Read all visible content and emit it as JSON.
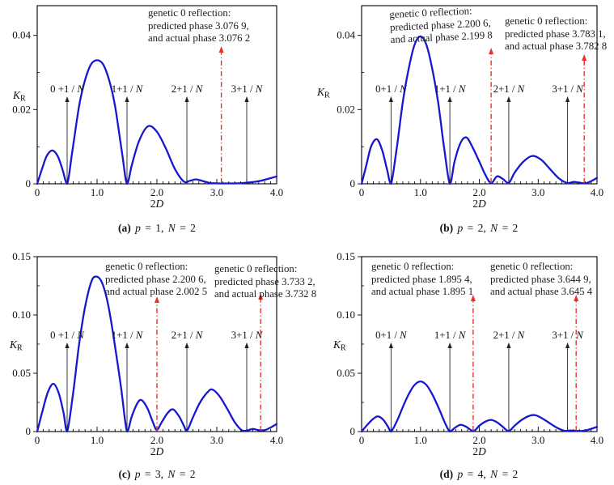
{
  "figure": {
    "background": "#ffffff"
  },
  "colors": {
    "curve_blue": "#1717cf",
    "arrow_red": "#e53127",
    "axis_black": "#000000",
    "text_black": "#1a1a1a"
  },
  "chart_data": [
    {
      "id": "a",
      "type": "line",
      "xlabel": {
        "prefix": "2",
        "italic": "D"
      },
      "ylabel": {
        "main": "K",
        "sub": "R"
      },
      "xlim": [
        0,
        4
      ],
      "ylim": [
        0,
        0.048
      ],
      "xtick_labels": [
        "0",
        "1.0",
        "2.0",
        "3.0",
        "4.0"
      ],
      "yticks": [
        {
          "v": 0,
          "label": "0"
        },
        {
          "v": 0.02,
          "label": "0.02"
        },
        {
          "v": 0.04,
          "label": "0.04"
        }
      ],
      "marker_arrows": [
        {
          "label": "0 +1 / N",
          "x": 0.5
        },
        {
          "label": "1+1 / N",
          "x": 1.5
        },
        {
          "label": "2+1 / N",
          "x": 2.5
        },
        {
          "label": "3+1 / N",
          "x": 3.5
        }
      ],
      "annotations": [
        {
          "lines": [
            "genetic 0  reflection:",
            "predicted phase 3.076 9,",
            "and actual phase 3.076 2"
          ],
          "arrow_x": 3.076
        }
      ],
      "caption": {
        "index": "(a)",
        "p_label": "p",
        "p_value": "= 1,",
        "n_label": "N",
        "n_value": "= 2"
      },
      "curve": [
        [
          0,
          0
        ],
        [
          0.08,
          0.004
        ],
        [
          0.16,
          0.0075
        ],
        [
          0.25,
          0.009
        ],
        [
          0.34,
          0.0075
        ],
        [
          0.42,
          0.004
        ],
        [
          0.5,
          0
        ],
        [
          0.58,
          0.008
        ],
        [
          0.7,
          0.021
        ],
        [
          0.8,
          0.028
        ],
        [
          0.9,
          0.0322
        ],
        [
          1.0,
          0.0333
        ],
        [
          1.1,
          0.0322
        ],
        [
          1.2,
          0.028
        ],
        [
          1.3,
          0.021
        ],
        [
          1.42,
          0.008
        ],
        [
          1.5,
          0
        ],
        [
          1.58,
          0.005
        ],
        [
          1.7,
          0.0115
        ],
        [
          1.85,
          0.0155
        ],
        [
          2.0,
          0.014
        ],
        [
          2.15,
          0.0095
        ],
        [
          2.3,
          0.004
        ],
        [
          2.45,
          0.0006
        ],
        [
          2.55,
          0.0008
        ],
        [
          2.65,
          0.0012
        ],
        [
          2.75,
          0.0008
        ],
        [
          2.9,
          0.0002
        ],
        [
          3.1,
          0.0001
        ],
        [
          3.3,
          0.0001
        ],
        [
          3.5,
          0.0003
        ],
        [
          3.7,
          0.0007
        ],
        [
          3.85,
          0.0013
        ],
        [
          4.0,
          0.002
        ]
      ]
    },
    {
      "id": "b",
      "type": "line",
      "xlabel": {
        "prefix": "2",
        "italic": "D"
      },
      "ylabel": {
        "main": "K",
        "sub": "R"
      },
      "xlim": [
        0,
        4
      ],
      "ylim": [
        0,
        0.048
      ],
      "xtick_labels": [
        "0",
        "1.0",
        "2.0",
        "3.0",
        "4.0"
      ],
      "yticks": [
        {
          "v": 0,
          "label": "0"
        },
        {
          "v": 0.02,
          "label": "0.02"
        },
        {
          "v": 0.04,
          "label": "0.04"
        }
      ],
      "marker_arrows": [
        {
          "label": "0+1 / N",
          "x": 0.5
        },
        {
          "label": "1+1 / N",
          "x": 1.5
        },
        {
          "label": "2+1 / N",
          "x": 2.5
        },
        {
          "label": "3+1 / N",
          "x": 3.5
        }
      ],
      "annotations": [
        {
          "lines": [
            "genetic 0  reflection:",
            "predicted phase 2.200 6,",
            "and actual phase 2.199 8"
          ],
          "arrow_x": 2.2
        },
        {
          "lines": [
            "genetic 0  reflection:",
            "predicted phase 3.783 1,",
            "and actual phase 3.782 8"
          ],
          "arrow_x": 3.783
        }
      ],
      "caption": {
        "index": "(b)",
        "p_label": "p",
        "p_value": "= 2,",
        "n_label": "N",
        "n_value": "= 2"
      },
      "curve": [
        [
          0,
          0
        ],
        [
          0.08,
          0.005
        ],
        [
          0.16,
          0.01
        ],
        [
          0.26,
          0.012
        ],
        [
          0.35,
          0.009
        ],
        [
          0.43,
          0.004
        ],
        [
          0.5,
          0
        ],
        [
          0.6,
          0.01
        ],
        [
          0.7,
          0.022
        ],
        [
          0.8,
          0.031
        ],
        [
          0.9,
          0.0375
        ],
        [
          1.0,
          0.0397
        ],
        [
          1.1,
          0.0375
        ],
        [
          1.2,
          0.031
        ],
        [
          1.3,
          0.022
        ],
        [
          1.4,
          0.01
        ],
        [
          1.5,
          0
        ],
        [
          1.58,
          0.006
        ],
        [
          1.68,
          0.011
        ],
        [
          1.78,
          0.0125
        ],
        [
          1.88,
          0.01
        ],
        [
          2.0,
          0.006
        ],
        [
          2.1,
          0.0025
        ],
        [
          2.2,
          0.0002
        ],
        [
          2.3,
          0.002
        ],
        [
          2.4,
          0.0013
        ],
        [
          2.5,
          0.0002
        ],
        [
          2.6,
          0.003
        ],
        [
          2.75,
          0.006
        ],
        [
          2.9,
          0.0075
        ],
        [
          3.05,
          0.0065
        ],
        [
          3.2,
          0.004
        ],
        [
          3.35,
          0.0015
        ],
        [
          3.5,
          0.0002
        ],
        [
          3.6,
          0.0005
        ],
        [
          3.7,
          0.0003
        ],
        [
          3.8,
          0.0001
        ],
        [
          3.9,
          0.0007
        ],
        [
          4.0,
          0.0016
        ]
      ]
    },
    {
      "id": "c",
      "type": "line",
      "xlabel": {
        "prefix": "2",
        "italic": "D"
      },
      "ylabel": {
        "main": "K",
        "sub": "R"
      },
      "xlim": [
        0,
        4
      ],
      "ylim": [
        0,
        0.15
      ],
      "xtick_labels": [
        "0",
        "1.0",
        "2.0",
        "3.0",
        "4.0"
      ],
      "yticks": [
        {
          "v": 0,
          "label": "0"
        },
        {
          "v": 0.05,
          "label": "0.05"
        },
        {
          "v": 0.1,
          "label": "0.10"
        },
        {
          "v": 0.15,
          "label": "0.15"
        }
      ],
      "marker_arrows": [
        {
          "label": "0 +1 / N",
          "x": 0.5
        },
        {
          "label": "1+1 / N",
          "x": 1.5
        },
        {
          "label": "2+1 / N",
          "x": 2.5
        },
        {
          "label": "3+1 / N",
          "x": 3.5
        }
      ],
      "annotations": [
        {
          "lines": [
            "genetic 0  reflection:",
            "predicted phase 2.200 6,",
            "and actual phase 2.002 5"
          ],
          "arrow_x": 2.0
        },
        {
          "lines": [
            "genetic 0  reflection:",
            "predicted phase 3.733 2,",
            "and actual phase 3.732 8"
          ],
          "arrow_x": 3.733
        }
      ],
      "caption": {
        "index": "(c)",
        "p_label": "p",
        "p_value": "= 3,",
        "n_label": "N",
        "n_value": "= 2"
      },
      "curve": [
        [
          0,
          0
        ],
        [
          0.1,
          0.02
        ],
        [
          0.18,
          0.034
        ],
        [
          0.27,
          0.041
        ],
        [
          0.36,
          0.033
        ],
        [
          0.44,
          0.016
        ],
        [
          0.5,
          0
        ],
        [
          0.6,
          0.033
        ],
        [
          0.7,
          0.075
        ],
        [
          0.8,
          0.107
        ],
        [
          0.9,
          0.128
        ],
        [
          0.98,
          0.133
        ],
        [
          1.08,
          0.128
        ],
        [
          1.18,
          0.11
        ],
        [
          1.28,
          0.08
        ],
        [
          1.4,
          0.038
        ],
        [
          1.5,
          0
        ],
        [
          1.58,
          0.013
        ],
        [
          1.67,
          0.024
        ],
        [
          1.74,
          0.027
        ],
        [
          1.84,
          0.02
        ],
        [
          1.94,
          0.007
        ],
        [
          2.0,
          0.0015
        ],
        [
          2.08,
          0.008
        ],
        [
          2.18,
          0.016
        ],
        [
          2.27,
          0.019
        ],
        [
          2.37,
          0.013
        ],
        [
          2.45,
          0.005
        ],
        [
          2.5,
          0.0006
        ],
        [
          2.6,
          0.012
        ],
        [
          2.72,
          0.025
        ],
        [
          2.85,
          0.034
        ],
        [
          2.93,
          0.036
        ],
        [
          3.05,
          0.03
        ],
        [
          3.18,
          0.019
        ],
        [
          3.3,
          0.008
        ],
        [
          3.42,
          0.001
        ],
        [
          3.5,
          0.0008
        ],
        [
          3.6,
          0.0022
        ],
        [
          3.7,
          0.0012
        ],
        [
          3.8,
          0.0012
        ],
        [
          3.9,
          0.0035
        ],
        [
          4.0,
          0.0065
        ]
      ]
    },
    {
      "id": "d",
      "type": "line",
      "xlabel": {
        "prefix": "2",
        "italic": "D"
      },
      "ylabel": {
        "main": "K",
        "sub": "R"
      },
      "xlim": [
        0,
        4
      ],
      "ylim": [
        0,
        0.15
      ],
      "xtick_labels": [
        "0",
        "1.0",
        "2.0",
        "3.0",
        "4.0"
      ],
      "yticks": [
        {
          "v": 0,
          "label": "0"
        },
        {
          "v": 0.05,
          "label": "0.05"
        },
        {
          "v": 0.1,
          "label": "0.10"
        },
        {
          "v": 0.15,
          "label": "0.15"
        }
      ],
      "marker_arrows": [
        {
          "label": "0+1 / N",
          "x": 0.5
        },
        {
          "label": "1+1 / N",
          "x": 1.5
        },
        {
          "label": "2+1 / N",
          "x": 2.5
        },
        {
          "label": "3+1 / N",
          "x": 3.5
        }
      ],
      "annotations": [
        {
          "lines": [
            "genetic 0  reflection:",
            "predicted phase 1.895 4,",
            "and actual phase 1.895 1"
          ],
          "arrow_x": 1.895
        },
        {
          "lines": [
            "genetic 0  reflection:",
            "predicted phase 3.644 9,",
            "and actual phase 3.645 4"
          ],
          "arrow_x": 3.645
        }
      ],
      "caption": {
        "index": "(d)",
        "p_label": "p",
        "p_value": "= 4,",
        "n_label": "N",
        "n_value": "= 2"
      },
      "curve": [
        [
          0,
          0
        ],
        [
          0.1,
          0.006
        ],
        [
          0.2,
          0.011
        ],
        [
          0.28,
          0.013
        ],
        [
          0.37,
          0.01
        ],
        [
          0.45,
          0.004
        ],
        [
          0.5,
          0
        ],
        [
          0.6,
          0.009
        ],
        [
          0.7,
          0.021
        ],
        [
          0.8,
          0.032
        ],
        [
          0.9,
          0.04
        ],
        [
          1.0,
          0.043
        ],
        [
          1.1,
          0.04
        ],
        [
          1.2,
          0.032
        ],
        [
          1.32,
          0.019
        ],
        [
          1.42,
          0.007
        ],
        [
          1.5,
          0
        ],
        [
          1.58,
          0.003
        ],
        [
          1.68,
          0.0058
        ],
        [
          1.78,
          0.004
        ],
        [
          1.9,
          0.0004
        ],
        [
          2.0,
          0.005
        ],
        [
          2.1,
          0.0085
        ],
        [
          2.2,
          0.01
        ],
        [
          2.3,
          0.008
        ],
        [
          2.4,
          0.004
        ],
        [
          2.5,
          0.0004
        ],
        [
          2.6,
          0.005
        ],
        [
          2.72,
          0.01
        ],
        [
          2.85,
          0.0135
        ],
        [
          2.95,
          0.014
        ],
        [
          3.08,
          0.011
        ],
        [
          3.2,
          0.007
        ],
        [
          3.33,
          0.003
        ],
        [
          3.45,
          0.0006
        ],
        [
          3.55,
          0.0009
        ],
        [
          3.65,
          0.0006
        ],
        [
          3.75,
          0.0006
        ],
        [
          3.85,
          0.0015
        ],
        [
          4.0,
          0.004
        ]
      ]
    }
  ]
}
